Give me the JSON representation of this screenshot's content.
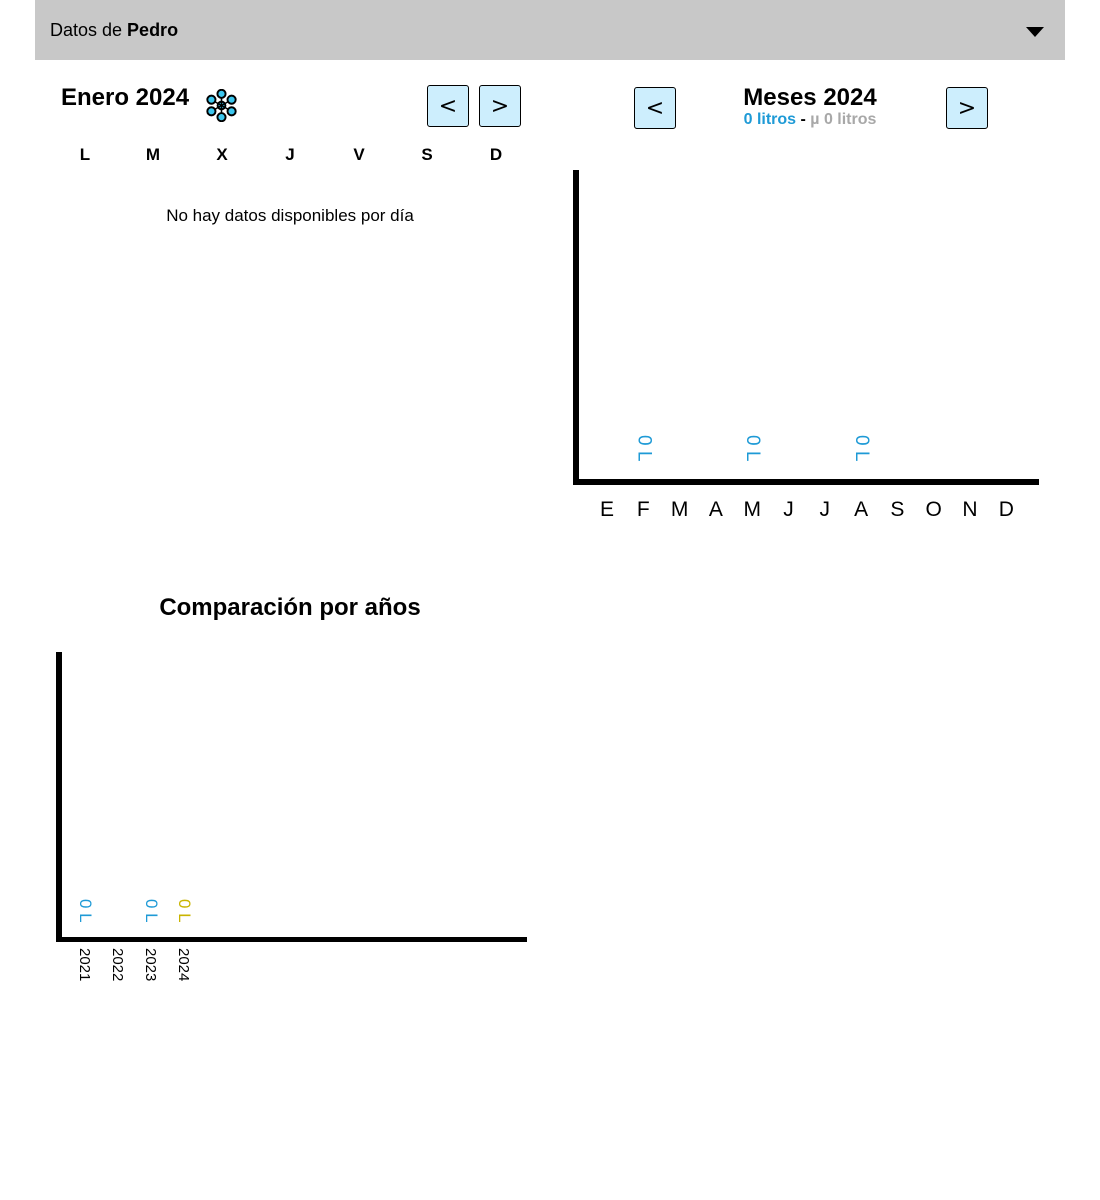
{
  "header": {
    "prefix": "Datos de ",
    "user": "Pedro",
    "dropdown_icon": "caret-down-icon"
  },
  "calendar": {
    "title": "Enero 2024",
    "season_icon": "snowflake-icon",
    "prev_label": "<",
    "next_label": ">",
    "weekdays": [
      "L",
      "M",
      "X",
      "J",
      "V",
      "S",
      "D"
    ],
    "empty_message": "No hay datos disponibles por día"
  },
  "months": {
    "title": "Meses 2024",
    "total": "0 litros",
    "separator": " - ",
    "average": "µ 0 litros",
    "prev_label": "<",
    "next_label": ">"
  },
  "years": {
    "title": "Comparación por años"
  },
  "colors": {
    "accent_blue": "#1e9ad6",
    "accent_yellow": "#c9b400",
    "button_bg": "#cdeefd",
    "header_bg": "#c8c8c8"
  },
  "chart_data": [
    {
      "type": "bar",
      "title": "Meses 2024",
      "categories": [
        "E",
        "F",
        "M",
        "A",
        "M",
        "J",
        "J",
        "A",
        "S",
        "O",
        "N",
        "D"
      ],
      "value_labels": [
        "",
        "0 L",
        "",
        "",
        "0 L",
        "",
        "",
        "0 L",
        "",
        "",
        "",
        ""
      ],
      "values": [
        null,
        0,
        null,
        null,
        0,
        null,
        null,
        0,
        null,
        null,
        null,
        null
      ],
      "unit": "L"
    },
    {
      "type": "bar",
      "title": "Comparación por años",
      "categories": [
        "2021",
        "2022",
        "2023",
        "2024"
      ],
      "value_labels": [
        "0 L",
        "",
        "0 L",
        "0 L"
      ],
      "values": [
        0,
        null,
        0,
        0
      ],
      "unit": "L"
    }
  ]
}
